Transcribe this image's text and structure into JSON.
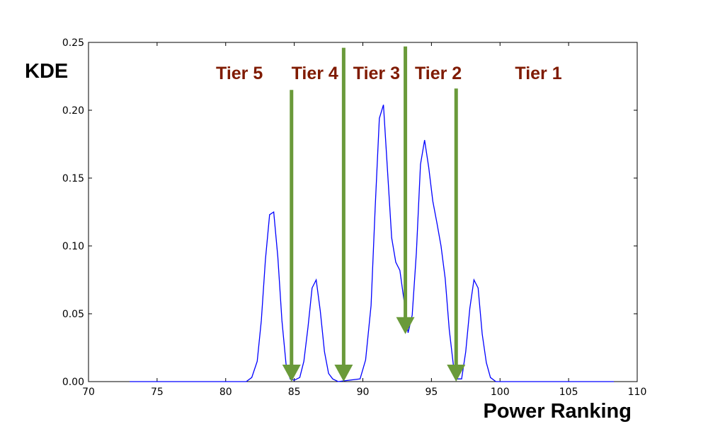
{
  "chart_data": {
    "type": "line",
    "xlabel": "Power Ranking",
    "ylabel": "KDE",
    "xlim": [
      70,
      110
    ],
    "ylim": [
      0,
      0.25
    ],
    "x_ticks": [
      70,
      75,
      80,
      85,
      90,
      95,
      100,
      105,
      110
    ],
    "y_ticks": [
      0.0,
      0.05,
      0.1,
      0.15,
      0.2,
      0.25
    ],
    "x_tick_labels": [
      "70",
      "75",
      "80",
      "85",
      "90",
      "95",
      "100",
      "105",
      "110"
    ],
    "y_tick_labels": [
      "0.00",
      "0.05",
      "0.10",
      "0.15",
      "0.20",
      "0.25"
    ],
    "grid": false,
    "colors": {
      "line": "#0000ff",
      "arrow": "#6a9a3a",
      "tier_text": "#7f1a00"
    },
    "series": [
      {
        "x": [
          73.0,
          81.5,
          81.9,
          82.3,
          82.6,
          82.9,
          83.2,
          83.5,
          83.8,
          84.1,
          84.4,
          84.7,
          85.0,
          85.4,
          85.7,
          86.0,
          86.3,
          86.6,
          86.9,
          87.2,
          87.5,
          87.8,
          88.2,
          89.8,
          90.2,
          90.6,
          90.9,
          91.2,
          91.5,
          91.8,
          92.1,
          92.4,
          92.7,
          93.0,
          93.3,
          93.6,
          93.9,
          94.2,
          94.5,
          94.8,
          95.1,
          95.4,
          95.7,
          96.0,
          96.3,
          96.6,
          96.9,
          97.2,
          97.5,
          97.8,
          98.1,
          98.4,
          98.7,
          99.0,
          99.3,
          99.7,
          108.3
        ],
        "y": [
          0.0,
          0.0,
          0.003,
          0.015,
          0.045,
          0.09,
          0.123,
          0.125,
          0.092,
          0.045,
          0.013,
          0.002,
          0.001,
          0.003,
          0.015,
          0.04,
          0.069,
          0.075,
          0.052,
          0.022,
          0.006,
          0.002,
          0.0,
          0.002,
          0.016,
          0.056,
          0.128,
          0.194,
          0.204,
          0.155,
          0.106,
          0.088,
          0.082,
          0.06,
          0.036,
          0.049,
          0.095,
          0.16,
          0.178,
          0.158,
          0.133,
          0.117,
          0.1,
          0.076,
          0.038,
          0.012,
          0.002,
          0.002,
          0.022,
          0.054,
          0.075,
          0.069,
          0.035,
          0.014,
          0.003,
          0.0,
          0.0
        ]
      }
    ],
    "arrows": [
      {
        "x": 84.8,
        "y_from": 0.215,
        "y_to": 0.0
      },
      {
        "x": 88.6,
        "y_from": 0.246,
        "y_to": 0.0
      },
      {
        "x": 93.1,
        "y_from": 0.247,
        "y_to": 0.035
      },
      {
        "x": 96.8,
        "y_from": 0.216,
        "y_to": 0.0
      }
    ],
    "annotations": [
      {
        "text": "Tier 5",
        "x": 81.0,
        "y": 0.2275
      },
      {
        "text": "Tier 4",
        "x": 86.5,
        "y": 0.2275
      },
      {
        "text": "Tier 3",
        "x": 91.0,
        "y": 0.2275
      },
      {
        "text": "Tier 2",
        "x": 95.5,
        "y": 0.2275
      },
      {
        "text": "Tier 1",
        "x": 102.8,
        "y": 0.2275
      }
    ]
  }
}
